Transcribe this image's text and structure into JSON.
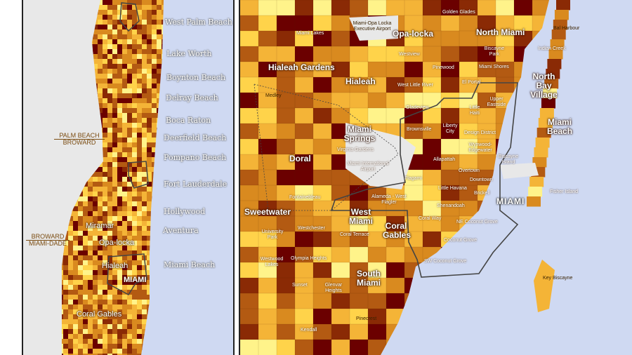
{
  "colors": {
    "water": "#cfd9f2",
    "land_none": "#e8e8e8",
    "c1": "#fff38a",
    "c2": "#ffd34a",
    "c3": "#f4b437",
    "c4": "#d98a1f",
    "c5": "#b35a12",
    "c6": "#8a2a05",
    "c7": "#6b0000",
    "boundary": "#444444"
  },
  "left_map": {
    "cities": [
      "West Palm Beach",
      "Lake Worth",
      "Boynton Beach",
      "Delray Beach",
      "Boca Raton",
      "Deerfield Beach",
      "Pompano Beach",
      "Fort Lauderdale",
      "Hollywood",
      "Aventura",
      "Miami Beach"
    ],
    "county_top": "PALM BEACH",
    "county_bottom": "BROWARD",
    "county2_top": "BROWARD",
    "county2_bottom": "MIAMI-DADE",
    "inner": {
      "miramar": "Miramar",
      "opa_locka": "Opa-locka",
      "hialeah": "Hialeah",
      "miami": "MIAMI",
      "coral_gables": "Coral Gables"
    }
  },
  "right_map": {
    "big": {
      "hialeah_gardens": "Hialeah Gardens",
      "hialeah": "Hialeah",
      "opa_locka": "Opa-locka",
      "north_miami": "North Miami",
      "north_bay_village": "North Bay Village",
      "miami_beach": "Miami Beach",
      "miami_springs": "Miami Springs",
      "doral": "Doral",
      "sweetwater": "Sweetwater",
      "west_miami": "West Miami",
      "coral_gables": "Coral Gables",
      "south_miami": "South Miami",
      "miami": "MIAMI"
    },
    "small": {
      "golden_glades": "Golden Glades",
      "miami_opa_locka_airport": "Miami-Opa Locka Executive Airport",
      "miami_lakes": "Miami Lakes",
      "bal_harbour": "Bal Harbour",
      "indian_creek": "Indian Creek",
      "westview": "Westview",
      "biscayne_park": "Biscayne Park",
      "pinewood": "Pinewood",
      "miami_shores": "Miami Shores",
      "medley": "Medley",
      "west_little_river": "West Little River",
      "el_portal": "El Portal",
      "gladeview": "Gladeview",
      "little_haiti": "Little Haiti",
      "upper_eastside": "Upper Eastside",
      "brownsville": "Brownsville",
      "liberty_city": "Liberty City",
      "design_district": "Design District",
      "wynwood": "Wynwood- Edgewater",
      "virginia_gardens": "Virginia Gardens",
      "miami_international_airport": "Miami International Airport",
      "allapattah": "Allapattah",
      "biscayne_island": "Biscayne Island",
      "flagami": "Flagami",
      "overtown": "Overtown",
      "downtown": "Downtown",
      "fontainebleau": "Fontainebleau",
      "little_havana": "Little Havana",
      "fisher_island": "Fisher Island",
      "alameda": "Alameda - West Flagler",
      "brickell": "Brickell",
      "shenandoah": "Shenandoah",
      "university_park": "University Park",
      "westchester": "Westchester",
      "coral_terrace": "Coral Terrace",
      "coral_way": "Coral Way",
      "ne_coconut_grove": "NE Coconut Grove",
      "coconut_grove": "Coconut Grove",
      "westwood_lakes": "Westwood Lakes",
      "olympia_heights": "Olympia Heights",
      "sw_coconut_grove": "SW Coconut Grove",
      "sunset": "Sunset",
      "glenvar_heights": "Glenvar Heights",
      "key_biscayne": "Key Biscayne",
      "pinecrest": "Pinecrest",
      "kendall": "Kendall"
    }
  }
}
